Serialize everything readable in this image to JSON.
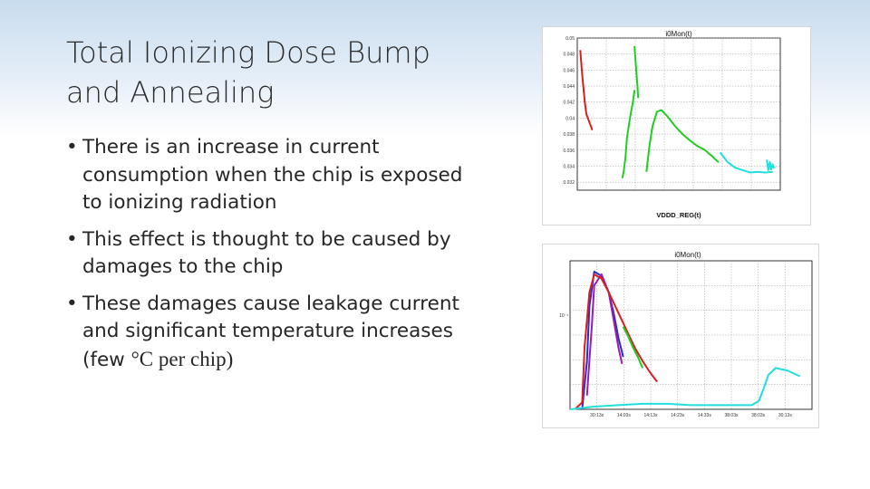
{
  "slide": {
    "title": "Total Ionizing Dose Bump and Annealing",
    "bullets": [
      {
        "text": "There is an increase in current consumption when the chip is exposed to ionizing radiation"
      },
      {
        "text": "This effect is thought to be caused by damages to the chip"
      },
      {
        "text_before": "These damages cause leakage current and significant temperature increases (few ",
        "text_serif": "°C per chip)"
      }
    ],
    "bullet_glyph": "•"
  },
  "chart_data": [
    {
      "type": "line",
      "title": "i0Mon(t)",
      "xlabel": "VDDD_REG(t)",
      "ylabel": "",
      "y_ticks": [
        "0.05",
        "0.048",
        "0.046",
        "0.044",
        "0.042",
        "0.04",
        "0.038",
        "0.036",
        "0.034",
        "0.032"
      ],
      "ylim": [
        0.031,
        0.05
      ],
      "grid": true,
      "series": [
        {
          "color": "#d62020",
          "x": [
            0.02,
            0.03,
            0.04,
            0.05,
            0.06,
            0.08,
            0.1
          ],
          "y": [
            0.0485,
            0.046,
            0.044,
            0.042,
            0.0405,
            0.0395,
            0.0385
          ]
        },
        {
          "color": "#22cc22",
          "x": [
            0.3,
            0.31,
            0.32,
            0.33,
            0.35,
            0.37,
            0.38
          ],
          "y": [
            0.0325,
            0.0335,
            0.035,
            0.0375,
            0.04,
            0.042,
            0.0435
          ]
        },
        {
          "color": "#22cc22",
          "x": [
            0.38,
            0.39,
            0.4,
            0.405
          ],
          "y": [
            0.049,
            0.0465,
            0.044,
            0.0425
          ]
        },
        {
          "color": "#22cc22",
          "x": [
            0.46,
            0.48,
            0.5,
            0.53,
            0.56,
            0.6,
            0.65,
            0.7,
            0.75,
            0.8,
            0.85,
            0.88
          ],
          "y": [
            0.0333,
            0.0365,
            0.039,
            0.0408,
            0.041,
            0.0402,
            0.039,
            0.038,
            0.0372,
            0.0365,
            0.036,
            0.0355
          ]
        },
        {
          "color": "#22cc22",
          "x": [
            0.88,
            0.9,
            0.92,
            0.94
          ],
          "y": [
            0.0355,
            0.0352,
            0.0348,
            0.0345
          ]
        },
        {
          "color": "#22dede",
          "x": [
            0.95,
            1.0,
            1.05,
            1.1,
            1.15,
            1.2,
            1.25,
            1.3
          ],
          "y": [
            0.0357,
            0.0345,
            0.0338,
            0.0335,
            0.0332,
            0.0333,
            0.0332,
            0.0333
          ]
        },
        {
          "color": "#22dede",
          "x": [
            1.26,
            1.27,
            1.28,
            1.29,
            1.3,
            1.31
          ],
          "y": [
            0.0348,
            0.0335,
            0.0345,
            0.0336,
            0.0342,
            0.0337
          ]
        }
      ]
    },
    {
      "type": "line",
      "title": "i0Mon(t)",
      "xlabel": "",
      "ylabel": "",
      "y_ticks": [
        "10⁻¹"
      ],
      "x_ticks": [
        "30:13s",
        "14:03s",
        "14:13s",
        "14:23s",
        "14:33s",
        "38:03s",
        "38:03s",
        "30:13s"
      ],
      "grid": true,
      "series": [
        {
          "color": "#2a2ad6",
          "x": [
            0.05,
            0.07,
            0.08,
            0.1,
            0.13,
            0.16,
            0.18,
            0.2,
            0.22
          ],
          "y": [
            0.0,
            0.35,
            0.75,
            1.0,
            0.97,
            0.85,
            0.7,
            0.52,
            0.38
          ]
        },
        {
          "color": "#9a1fa8",
          "x": [
            0.07,
            0.09,
            0.1,
            0.13,
            0.16,
            0.18,
            0.2,
            0.215
          ],
          "y": [
            0.1,
            0.6,
            0.9,
            0.98,
            0.85,
            0.65,
            0.45,
            0.33
          ]
        },
        {
          "color": "#d62020",
          "x": [
            0.02,
            0.05,
            0.06,
            0.08,
            0.1,
            0.13,
            0.16,
            0.2,
            0.24,
            0.27,
            0.3,
            0.33,
            0.36
          ],
          "y": [
            0.0,
            0.05,
            0.45,
            0.85,
            0.98,
            0.95,
            0.85,
            0.7,
            0.55,
            0.44,
            0.35,
            0.27,
            0.2
          ]
        },
        {
          "color": "#22cc22",
          "x": [
            0.22,
            0.24,
            0.26,
            0.28,
            0.3
          ],
          "y": [
            0.6,
            0.53,
            0.45,
            0.38,
            0.3
          ]
        },
        {
          "color": "#22dede",
          "x": [
            0.0,
            0.1,
            0.2,
            0.3,
            0.4,
            0.5,
            0.6,
            0.7,
            0.75,
            0.78,
            0.8,
            0.82,
            0.85,
            0.9,
            0.95
          ],
          "y": [
            0.0,
            0.02,
            0.03,
            0.04,
            0.04,
            0.03,
            0.03,
            0.03,
            0.03,
            0.06,
            0.15,
            0.25,
            0.3,
            0.28,
            0.24
          ]
        }
      ]
    }
  ]
}
